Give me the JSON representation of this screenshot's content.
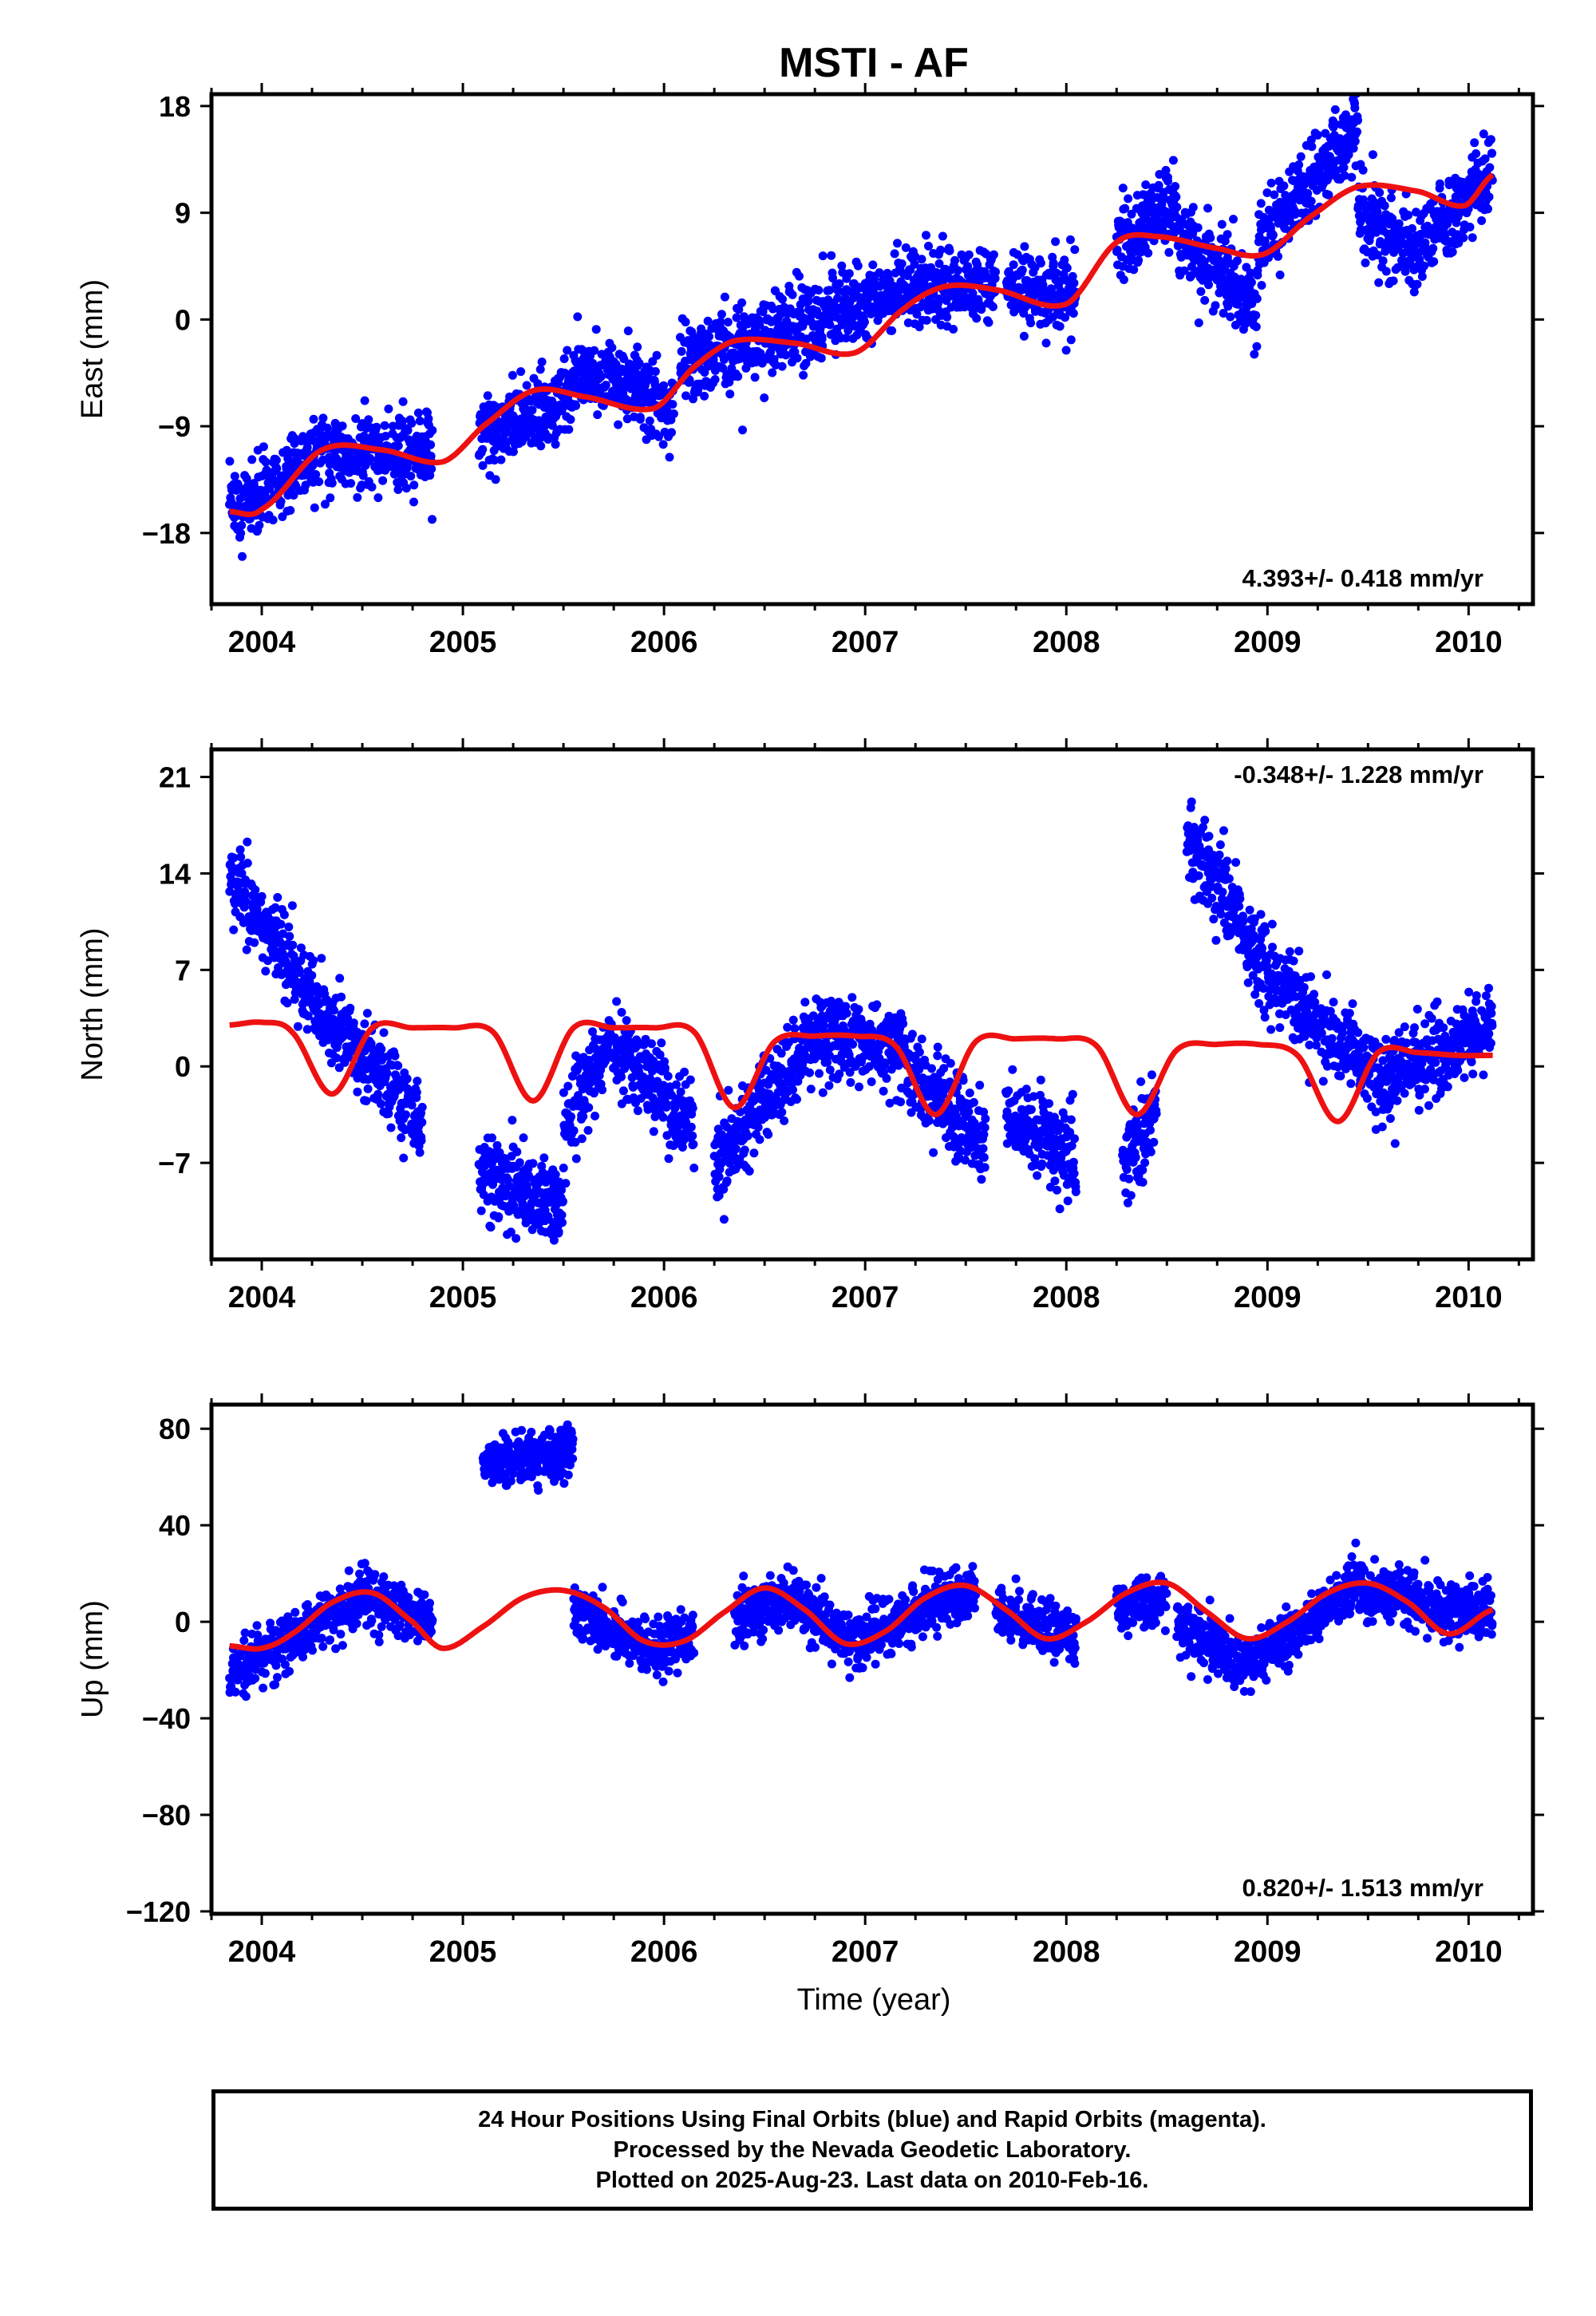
{
  "title": "MSTI - AF",
  "time_label": "Time (year)",
  "colors": {
    "points": "#0000ff",
    "fit": "#ee1111"
  },
  "footer": {
    "line1": "24 Hour Positions Using Final Orbits (blue) and Rapid Orbits (magenta).",
    "line2": "Processed by the Nevada Geodetic Laboratory.",
    "line3": "Plotted on 2025-Aug-23. Last data on 2010-Feb-16."
  },
  "chart_data": [
    {
      "type": "scatter",
      "name": "east",
      "ylabel": "East (mm)",
      "rate": "4.393+/- 0.418 mm/yr",
      "rate_pos": "bottom-right",
      "xlim": [
        2003.75,
        2010.32
      ],
      "ylim": [
        -24,
        19
      ],
      "xticks": [
        "2004",
        "2005",
        "2006",
        "2007",
        "2008",
        "2009",
        "2010"
      ],
      "yticks": [
        18,
        9,
        0,
        -9,
        -18
      ],
      "ytick_labels": [
        "18",
        "9",
        "0",
        "−9",
        "−18"
      ],
      "points": {
        "x_range": [
          2003.84,
          2010.12
        ],
        "segments": [
          [
            2003.84,
            2004.3,
            2003.84,
            -16.5,
            2004.3,
            -11.0
          ],
          [
            2004.3,
            2004.85,
            2004.3,
            -11.0,
            2004.85,
            -11.5
          ],
          [
            2005.08,
            2005.55,
            2005.08,
            -10.0,
            2005.55,
            -6.5
          ],
          [
            2005.55,
            2006.05,
            2005.55,
            -4.0,
            2006.05,
            -7.5
          ],
          [
            2006.08,
            2006.6,
            2006.08,
            -4.0,
            2006.6,
            -1.0
          ],
          [
            2006.6,
            2007.1,
            2006.6,
            -1.0,
            2007.1,
            2.0
          ],
          [
            2007.1,
            2007.65,
            2007.1,
            2.5,
            2007.65,
            3.0
          ],
          [
            2007.7,
            2008.05,
            2007.7,
            3.0,
            2008.05,
            2.0
          ],
          [
            2008.25,
            2008.55,
            2008.25,
            6.5,
            2008.55,
            10.0
          ],
          [
            2008.55,
            2008.95,
            2008.55,
            7.0,
            2008.95,
            1.0
          ],
          [
            2008.95,
            2009.45,
            2008.95,
            6.0,
            2009.45,
            16.5
          ],
          [
            2009.45,
            2009.75,
            2009.45,
            9.0,
            2009.75,
            5.5
          ],
          [
            2009.75,
            2010.12,
            2009.75,
            6.0,
            2010.12,
            12.5
          ]
        ],
        "noise": 1.6
      },
      "trend": {
        "knots_x": [
          2003.84,
          2004.0,
          2004.3,
          2004.6,
          2004.9,
          2005.1,
          2005.35,
          2005.6,
          2005.95,
          2006.15,
          2006.35,
          2006.65,
          2006.95,
          2007.2,
          2007.4,
          2007.65,
          2008.0,
          2008.25,
          2008.45,
          2008.75,
          2008.98,
          2009.2,
          2009.45,
          2009.75,
          2009.98,
          2010.12
        ],
        "knots_y": [
          -16.2,
          -16.0,
          -11.0,
          -11.0,
          -12.0,
          -9.0,
          -6.0,
          -6.5,
          -7.5,
          -4.0,
          -1.8,
          -2.0,
          -2.8,
          1.0,
          2.8,
          2.5,
          1.3,
          6.5,
          7.0,
          6.0,
          5.5,
          8.5,
          11.2,
          10.8,
          9.6,
          12.2
        ]
      }
    },
    {
      "type": "scatter",
      "name": "north",
      "ylabel": "North (mm)",
      "rate": "-0.348+/- 1.228 mm/yr",
      "rate_pos": "top-right",
      "xlim": [
        2003.75,
        2010.32
      ],
      "ylim": [
        -14,
        23
      ],
      "xticks": [
        "2004",
        "2005",
        "2006",
        "2007",
        "2008",
        "2009",
        "2010"
      ],
      "yticks": [
        21,
        14,
        7,
        0,
        -7
      ],
      "ytick_labels": [
        "21",
        "14",
        "7",
        "0",
        "−7"
      ],
      "points": {
        "x_range": [
          2003.84,
          2010.12
        ],
        "segments": [
          [
            2003.84,
            2004.25,
            2003.84,
            14.0,
            2004.25,
            5.0
          ],
          [
            2004.25,
            2004.8,
            2004.25,
            5.0,
            2004.8,
            -4.0
          ],
          [
            2005.08,
            2005.5,
            2005.08,
            -8.0,
            2005.5,
            -10.0
          ],
          [
            2005.5,
            2005.75,
            2005.5,
            -4.0,
            2005.75,
            2.0
          ],
          [
            2005.75,
            2006.15,
            2005.75,
            1.5,
            2006.15,
            -5.0
          ],
          [
            2006.25,
            2006.7,
            2006.25,
            -7.0,
            2006.7,
            1.0
          ],
          [
            2006.7,
            2007.2,
            2006.7,
            2.5,
            2007.2,
            1.0
          ],
          [
            2007.2,
            2007.6,
            2007.2,
            0.0,
            2007.6,
            -6.0
          ],
          [
            2007.7,
            2008.05,
            2007.7,
            -3.5,
            2008.05,
            -7.0
          ],
          [
            2008.28,
            2008.45,
            2008.28,
            -7.5,
            2008.45,
            -3.0
          ],
          [
            2008.6,
            2009.0,
            2008.6,
            17.0,
            2009.0,
            7.0
          ],
          [
            2009.0,
            2009.6,
            2009.0,
            6.0,
            2009.6,
            -1.5
          ],
          [
            2009.6,
            2010.12,
            2009.6,
            -1.0,
            2010.12,
            3.0
          ]
        ],
        "noise": 1.5
      },
      "trend": {
        "knots_x": [
          2003.84,
          2004.0,
          2004.15,
          2004.35,
          2004.55,
          2004.75,
          2004.95,
          2005.15,
          2005.35,
          2005.55,
          2005.75,
          2005.95,
          2006.15,
          2006.35,
          2006.55,
          2006.75,
          2006.95,
          2007.15,
          2007.35,
          2007.55,
          2007.75,
          2007.95,
          2008.15,
          2008.35,
          2008.55,
          2008.75,
          2008.95,
          2009.15,
          2009.35,
          2009.55,
          2009.75,
          2009.95,
          2010.12
        ],
        "knots_y": [
          3.0,
          3.2,
          2.5,
          -2.0,
          2.8,
          2.8,
          2.8,
          2.5,
          -2.5,
          2.8,
          2.8,
          2.8,
          2.5,
          -3.0,
          1.8,
          2.2,
          2.2,
          1.5,
          -3.5,
          1.8,
          2.0,
          2.0,
          1.5,
          -3.5,
          1.2,
          1.6,
          1.6,
          0.8,
          -4.0,
          1.0,
          1.0,
          0.8,
          0.8
        ]
      }
    },
    {
      "type": "scatter",
      "name": "up",
      "ylabel": "Up (mm)",
      "rate": "0.820+/- 1.513 mm/yr",
      "rate_pos": "bottom-right",
      "xlim": [
        2003.75,
        2010.32
      ],
      "ylim": [
        -121,
        90
      ],
      "xticks": [
        "2004",
        "2005",
        "2006",
        "2007",
        "2008",
        "2009",
        "2010"
      ],
      "yticks": [
        80,
        40,
        0,
        -40,
        -80,
        -120
      ],
      "ytick_labels": [
        "80",
        "40",
        "0",
        "−40",
        "−80",
        "−120"
      ],
      "points": {
        "x_range": [
          2003.84,
          2010.12
        ],
        "segments": [
          [
            2003.84,
            2004.5,
            2003.84,
            -22.0,
            2004.5,
            10.0
          ],
          [
            2004.5,
            2004.85,
            2004.5,
            10.0,
            2004.85,
            0.0
          ],
          [
            2005.1,
            2005.55,
            2005.1,
            65.0,
            2005.55,
            72.0
          ],
          [
            2005.55,
            2005.95,
            2005.55,
            5.0,
            2005.95,
            -12.0
          ],
          [
            2005.95,
            2006.15,
            2005.95,
            -12.0,
            2006.15,
            -5.0
          ],
          [
            2006.35,
            2006.65,
            2006.35,
            2.0,
            2006.65,
            10.0
          ],
          [
            2006.65,
            2006.95,
            2006.65,
            10.0,
            2006.95,
            -10.0
          ],
          [
            2006.95,
            2007.55,
            2006.95,
            -8.0,
            2007.55,
            14.0
          ],
          [
            2007.65,
            2008.05,
            2007.65,
            5.0,
            2008.05,
            -8.0
          ],
          [
            2008.25,
            2008.5,
            2008.25,
            5.0,
            2008.5,
            10.0
          ],
          [
            2008.55,
            2008.9,
            2008.55,
            0.0,
            2008.9,
            -20.0
          ],
          [
            2008.9,
            2009.45,
            2008.9,
            -18.0,
            2009.45,
            15.0
          ],
          [
            2009.45,
            2010.12,
            2009.45,
            12.0,
            2010.12,
            2.0
          ]
        ],
        "noise": 5.5
      },
      "trend": {
        "knots_x": [
          2003.84,
          2004.0,
          2004.15,
          2004.35,
          2004.55,
          2004.75,
          2004.9,
          2005.1,
          2005.3,
          2005.5,
          2005.7,
          2005.9,
          2006.1,
          2006.3,
          2006.5,
          2006.7,
          2006.9,
          2007.1,
          2007.3,
          2007.5,
          2007.7,
          2007.9,
          2008.1,
          2008.3,
          2008.5,
          2008.7,
          2008.9,
          2009.1,
          2009.3,
          2009.5,
          2009.7,
          2009.9,
          2010.12
        ],
        "knots_y": [
          -10,
          -11,
          -5,
          8,
          12,
          0,
          -11,
          -2,
          10,
          13,
          6,
          -8,
          -8,
          4,
          14,
          5,
          -9,
          -4,
          10,
          15,
          5,
          -7,
          0,
          12,
          16,
          4,
          -7,
          0,
          12,
          16,
          8,
          -5,
          5
        ]
      }
    }
  ]
}
